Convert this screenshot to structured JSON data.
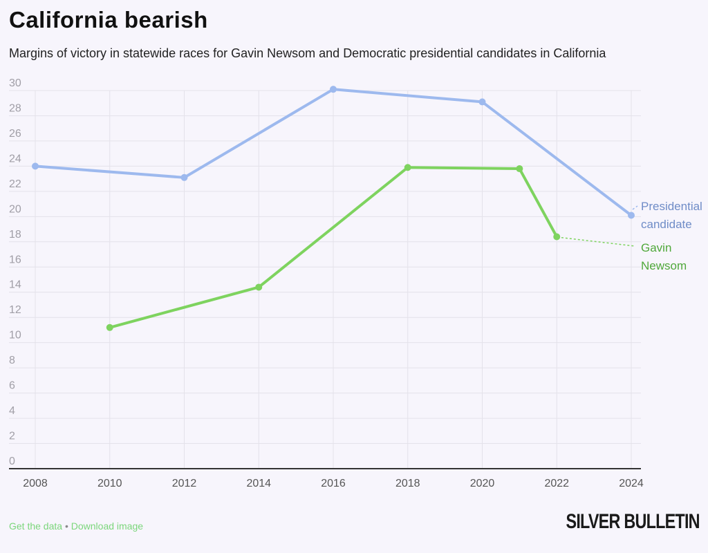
{
  "header": {
    "title": "California bearish",
    "subtitle": "Margins of victory in statewide races for Gavin Newsom and Democratic presidential candidates in California"
  },
  "chart_data": {
    "type": "line",
    "title": "California bearish",
    "ylim": [
      0,
      30
    ],
    "xlim": [
      2008,
      2024
    ],
    "yticks": [
      "0",
      "2",
      "4",
      "6",
      "8",
      "10",
      "12",
      "14",
      "16",
      "18",
      "20",
      "22",
      "24",
      "26",
      "28",
      "30"
    ],
    "xticks": [
      "2008",
      "2010",
      "2012",
      "2014",
      "2016",
      "2018",
      "2020",
      "2022",
      "2024"
    ],
    "grid": true,
    "series": [
      {
        "name": "Presidential candidate",
        "label_lines": [
          "Presidential",
          "candidate"
        ],
        "color": "#9db9ee",
        "label_color": "#6f8cc7",
        "x": [
          2008,
          2012,
          2016,
          2020,
          2024
        ],
        "y": [
          24.0,
          23.1,
          30.1,
          29.1,
          20.1
        ]
      },
      {
        "name": "Gavin Newsom",
        "label_lines": [
          "Gavin",
          "Newsom"
        ],
        "color": "#7ed35f",
        "label_color": "#4fa83a",
        "x": [
          2010,
          2014,
          2018,
          2021,
          2022
        ],
        "y": [
          11.2,
          14.4,
          23.9,
          23.8,
          18.4
        ]
      }
    ]
  },
  "footer": {
    "get_data": "Get the data",
    "separator": " • ",
    "download": "Download image",
    "logo": "SILVER BULLETIN"
  }
}
